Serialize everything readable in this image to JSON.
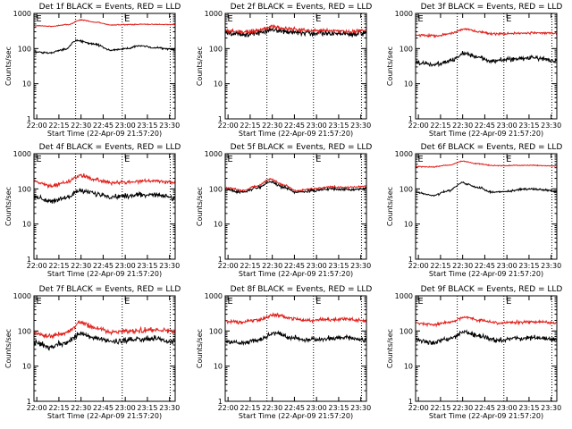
{
  "figure": {
    "colors": {
      "events": "#000000",
      "lld": "#e0201b",
      "frame": "#000000",
      "background": "#ffffff"
    }
  },
  "chart_data": [
    {
      "type": "line",
      "panel": "det-1",
      "title": "Det 1f BLACK = Events, RED = LLD",
      "xlabel": "Start Time (22-Apr-09 21:57:20)",
      "ylabel": "Counts/sec",
      "y_scale": "log",
      "ylim": [
        1,
        1000
      ],
      "y_ticks": [
        "1",
        "10",
        "100",
        "1000"
      ],
      "xlim": [
        0,
        100
      ],
      "x_ticks": [
        "22:00",
        "22:15",
        "22:30",
        "22:45",
        "23:00",
        "23:15",
        "23:30"
      ],
      "vlines": [
        0,
        29.5,
        62.5,
        96.5
      ],
      "corner_markers": [
        "E",
        "E"
      ],
      "series": [
        {
          "name": "Events",
          "color": "#000000",
          "noise": 0.02,
          "knots": [
            [
              0,
              80
            ],
            [
              10,
              75
            ],
            [
              22,
              95
            ],
            [
              30,
              170
            ],
            [
              42,
              135
            ],
            [
              55,
              90
            ],
            [
              66,
              100
            ],
            [
              75,
              120
            ],
            [
              86,
              105
            ],
            [
              100,
              95
            ]
          ]
        },
        {
          "name": "LLD",
          "color": "#e0201b",
          "noise": 0.01,
          "knots": [
            [
              0,
              450
            ],
            [
              12,
              430
            ],
            [
              24,
              480
            ],
            [
              33,
              650
            ],
            [
              44,
              560
            ],
            [
              54,
              470
            ],
            [
              66,
              480
            ],
            [
              80,
              490
            ],
            [
              100,
              480
            ]
          ]
        }
      ]
    },
    {
      "type": "line",
      "panel": "det-2",
      "title": "Det 2f BLACK = Events, RED = LLD",
      "xlabel": "Start Time (22-Apr-09 21:57:20)",
      "ylabel": "Counts/sec",
      "y_scale": "log",
      "ylim": [
        1,
        1000
      ],
      "y_ticks": [
        "1",
        "10",
        "100",
        "1000"
      ],
      "xlim": [
        0,
        100
      ],
      "x_ticks": [
        "22:00",
        "22:15",
        "22:30",
        "22:45",
        "23:00",
        "23:15",
        "23:30"
      ],
      "vlines": [
        0,
        29.5,
        62.5,
        96.5
      ],
      "corner_markers": [
        "E",
        "E"
      ],
      "series": [
        {
          "name": "Events",
          "color": "#000000",
          "noise": 0.06,
          "knots": [
            [
              0,
              280
            ],
            [
              15,
              250
            ],
            [
              25,
              290
            ],
            [
              33,
              340
            ],
            [
              45,
              300
            ],
            [
              60,
              280
            ],
            [
              75,
              270
            ],
            [
              90,
              260
            ],
            [
              100,
              280
            ]
          ]
        },
        {
          "name": "LLD",
          "color": "#e0201b",
          "noise": 0.04,
          "knots": [
            [
              0,
              320
            ],
            [
              15,
              300
            ],
            [
              25,
              340
            ],
            [
              33,
              420
            ],
            [
              45,
              360
            ],
            [
              60,
              330
            ],
            [
              75,
              320
            ],
            [
              90,
              300
            ],
            [
              100,
              330
            ]
          ]
        }
      ]
    },
    {
      "type": "line",
      "panel": "det-3",
      "title": "Det 3f BLACK = Events, RED = LLD",
      "xlabel": "Start Time (22-Apr-09 21:57:20)",
      "ylabel": "Counts/sec",
      "y_scale": "log",
      "ylim": [
        1,
        1000
      ],
      "y_ticks": [
        "1",
        "10",
        "100",
        "1000"
      ],
      "xlim": [
        0,
        100
      ],
      "x_ticks": [
        "22:00",
        "22:15",
        "22:30",
        "22:45",
        "23:00",
        "23:15",
        "23:30"
      ],
      "vlines": [
        0,
        29.5,
        62.5,
        96.5
      ],
      "corner_markers": [
        "E",
        "E"
      ],
      "series": [
        {
          "name": "Events",
          "color": "#000000",
          "noise": 0.05,
          "knots": [
            [
              0,
              40
            ],
            [
              15,
              35
            ],
            [
              25,
              45
            ],
            [
              35,
              75
            ],
            [
              45,
              55
            ],
            [
              55,
              45
            ],
            [
              70,
              50
            ],
            [
              85,
              55
            ],
            [
              100,
              45
            ]
          ]
        },
        {
          "name": "LLD",
          "color": "#e0201b",
          "noise": 0.025,
          "knots": [
            [
              0,
              240
            ],
            [
              15,
              230
            ],
            [
              25,
              270
            ],
            [
              35,
              360
            ],
            [
              45,
              300
            ],
            [
              55,
              260
            ],
            [
              70,
              270
            ],
            [
              85,
              280
            ],
            [
              100,
              270
            ]
          ]
        }
      ]
    },
    {
      "type": "line",
      "panel": "det-4",
      "title": "Det 4f BLACK = Events, RED = LLD",
      "xlabel": "Start Time (22-Apr-09 21:57:20)",
      "ylabel": "Counts/sec",
      "y_scale": "log",
      "ylim": [
        1,
        1000
      ],
      "y_ticks": [
        "1",
        "10",
        "100",
        "1000"
      ],
      "xlim": [
        0,
        100
      ],
      "x_ticks": [
        "22:00",
        "22:15",
        "22:30",
        "22:45",
        "23:00",
        "23:15",
        "23:30"
      ],
      "vlines": [
        0,
        29.5,
        62.5,
        96.5
      ],
      "corner_markers": [
        "E",
        "E"
      ],
      "series": [
        {
          "name": "Events",
          "color": "#000000",
          "noise": 0.05,
          "knots": [
            [
              0,
              60
            ],
            [
              12,
              45
            ],
            [
              22,
              55
            ],
            [
              33,
              90
            ],
            [
              45,
              70
            ],
            [
              55,
              60
            ],
            [
              70,
              65
            ],
            [
              85,
              70
            ],
            [
              100,
              55
            ]
          ]
        },
        {
          "name": "LLD",
          "color": "#e0201b",
          "noise": 0.04,
          "knots": [
            [
              0,
              160
            ],
            [
              12,
              120
            ],
            [
              22,
              150
            ],
            [
              33,
              240
            ],
            [
              45,
              180
            ],
            [
              55,
              150
            ],
            [
              70,
              160
            ],
            [
              85,
              170
            ],
            [
              100,
              150
            ]
          ]
        }
      ]
    },
    {
      "type": "line",
      "panel": "det-5",
      "title": "Det 5f BLACK = Events, RED = LLD",
      "xlabel": "Start Time (22-Apr-09 21:57:20)",
      "ylabel": "Counts/sec",
      "y_scale": "log",
      "ylim": [
        1,
        1000
      ],
      "y_ticks": [
        "1",
        "10",
        "100",
        "1000"
      ],
      "xlim": [
        0,
        100
      ],
      "x_ticks": [
        "22:00",
        "22:15",
        "22:30",
        "22:45",
        "23:00",
        "23:15",
        "23:30"
      ],
      "vlines": [
        0,
        29.5,
        62.5,
        96.5
      ],
      "corner_markers": [
        "E",
        "E"
      ],
      "series": [
        {
          "name": "Events",
          "color": "#000000",
          "noise": 0.03,
          "knots": [
            [
              0,
              95
            ],
            [
              12,
              80
            ],
            [
              22,
              105
            ],
            [
              32,
              160
            ],
            [
              42,
              110
            ],
            [
              50,
              80
            ],
            [
              62,
              90
            ],
            [
              75,
              100
            ],
            [
              88,
              95
            ],
            [
              100,
              100
            ]
          ]
        },
        {
          "name": "LLD",
          "color": "#e0201b",
          "noise": 0.02,
          "knots": [
            [
              0,
              110
            ],
            [
              12,
              90
            ],
            [
              22,
              120
            ],
            [
              32,
              185
            ],
            [
              42,
              125
            ],
            [
              50,
              90
            ],
            [
              62,
              100
            ],
            [
              75,
              115
            ],
            [
              88,
              110
            ],
            [
              100,
              120
            ]
          ]
        }
      ]
    },
    {
      "type": "line",
      "panel": "det-6",
      "title": "Det 6f BLACK = Events, RED = LLD",
      "xlabel": "Start Time (22-Apr-09 21:57:20)",
      "ylabel": "Counts/sec",
      "y_scale": "log",
      "ylim": [
        1,
        1000
      ],
      "y_ticks": [
        "1",
        "10",
        "100",
        "1000"
      ],
      "xlim": [
        0,
        100
      ],
      "x_ticks": [
        "22:00",
        "22:15",
        "22:30",
        "22:45",
        "23:00",
        "23:15",
        "23:30"
      ],
      "vlines": [
        0,
        29.5,
        62.5,
        96.5
      ],
      "corner_markers": [
        "E",
        "E"
      ],
      "series": [
        {
          "name": "Events",
          "color": "#000000",
          "noise": 0.02,
          "knots": [
            [
              0,
              80
            ],
            [
              12,
              65
            ],
            [
              24,
              90
            ],
            [
              33,
              150
            ],
            [
              44,
              110
            ],
            [
              55,
              80
            ],
            [
              66,
              85
            ],
            [
              78,
              100
            ],
            [
              90,
              95
            ],
            [
              100,
              85
            ]
          ]
        },
        {
          "name": "LLD",
          "color": "#e0201b",
          "noise": 0.01,
          "knots": [
            [
              0,
              430
            ],
            [
              12,
              420
            ],
            [
              24,
              480
            ],
            [
              33,
              610
            ],
            [
              44,
              520
            ],
            [
              55,
              460
            ],
            [
              66,
              460
            ],
            [
              80,
              470
            ],
            [
              100,
              450
            ]
          ]
        }
      ]
    },
    {
      "type": "line",
      "panel": "det-7",
      "title": "Det 7f BLACK = Events, RED = LLD",
      "xlabel": "Start Time (22-Apr-09 21:57:20)",
      "ylabel": "Counts/sec",
      "y_scale": "log",
      "ylim": [
        1,
        1000
      ],
      "y_ticks": [
        "1",
        "10",
        "100",
        "1000"
      ],
      "xlim": [
        0,
        100
      ],
      "x_ticks": [
        "22:00",
        "22:15",
        "22:30",
        "22:45",
        "23:00",
        "23:15",
        "23:30"
      ],
      "vlines": [
        0,
        29.5,
        62.5,
        96.5
      ],
      "corner_markers": [
        "E",
        "E"
      ],
      "series": [
        {
          "name": "Events",
          "color": "#000000",
          "noise": 0.06,
          "knots": [
            [
              0,
              45
            ],
            [
              12,
              35
            ],
            [
              22,
              45
            ],
            [
              33,
              85
            ],
            [
              45,
              60
            ],
            [
              55,
              50
            ],
            [
              70,
              55
            ],
            [
              85,
              60
            ],
            [
              100,
              50
            ]
          ]
        },
        {
          "name": "LLD",
          "color": "#e0201b",
          "noise": 0.05,
          "knots": [
            [
              0,
              90
            ],
            [
              12,
              70
            ],
            [
              22,
              90
            ],
            [
              33,
              170
            ],
            [
              45,
              120
            ],
            [
              55,
              95
            ],
            [
              70,
              100
            ],
            [
              85,
              110
            ],
            [
              100,
              100
            ]
          ]
        }
      ]
    },
    {
      "type": "line",
      "panel": "det-8",
      "title": "Det 8f BLACK = Events, RED = LLD",
      "xlabel": "Start Time (22-Apr-09 21:57:20)",
      "ylabel": "Counts/sec",
      "y_scale": "log",
      "ylim": [
        1,
        1000
      ],
      "y_ticks": [
        "1",
        "10",
        "100",
        "1000"
      ],
      "xlim": [
        0,
        100
      ],
      "x_ticks": [
        "22:00",
        "22:15",
        "22:30",
        "22:45",
        "23:00",
        "23:15",
        "23:30"
      ],
      "vlines": [
        0,
        29.5,
        62.5,
        96.5
      ],
      "corner_markers": [
        "E",
        "E"
      ],
      "series": [
        {
          "name": "Events",
          "color": "#000000",
          "noise": 0.05,
          "knots": [
            [
              0,
              50
            ],
            [
              12,
              45
            ],
            [
              24,
              55
            ],
            [
              35,
              90
            ],
            [
              46,
              65
            ],
            [
              58,
              55
            ],
            [
              72,
              60
            ],
            [
              86,
              65
            ],
            [
              100,
              55
            ]
          ]
        },
        {
          "name": "LLD",
          "color": "#e0201b",
          "noise": 0.04,
          "knots": [
            [
              0,
              190
            ],
            [
              12,
              180
            ],
            [
              24,
              210
            ],
            [
              35,
              290
            ],
            [
              46,
              230
            ],
            [
              58,
              200
            ],
            [
              72,
              210
            ],
            [
              86,
              220
            ],
            [
              100,
              190
            ]
          ]
        }
      ]
    },
    {
      "type": "line",
      "panel": "det-9",
      "title": "Det 9f BLACK = Events, RED = LLD",
      "xlabel": "Start Time (22-Apr-09 21:57:20)",
      "ylabel": "Counts/sec",
      "y_scale": "log",
      "ylim": [
        1,
        1000
      ],
      "y_ticks": [
        "1",
        "10",
        "100",
        "1000"
      ],
      "xlim": [
        0,
        100
      ],
      "x_ticks": [
        "22:00",
        "22:15",
        "22:30",
        "22:45",
        "23:00",
        "23:15",
        "23:30"
      ],
      "vlines": [
        0,
        29.5,
        62.5,
        96.5
      ],
      "corner_markers": [
        "E",
        "E"
      ],
      "series": [
        {
          "name": "Events",
          "color": "#000000",
          "noise": 0.05,
          "knots": [
            [
              0,
              55
            ],
            [
              12,
              45
            ],
            [
              24,
              60
            ],
            [
              35,
              90
            ],
            [
              46,
              70
            ],
            [
              58,
              55
            ],
            [
              72,
              60
            ],
            [
              86,
              65
            ],
            [
              100,
              55
            ]
          ]
        },
        {
          "name": "LLD",
          "color": "#e0201b",
          "noise": 0.03,
          "knots": [
            [
              0,
              170
            ],
            [
              12,
              150
            ],
            [
              24,
              175
            ],
            [
              35,
              250
            ],
            [
              46,
              200
            ],
            [
              58,
              170
            ],
            [
              72,
              175
            ],
            [
              86,
              180
            ],
            [
              100,
              170
            ]
          ]
        }
      ]
    }
  ]
}
